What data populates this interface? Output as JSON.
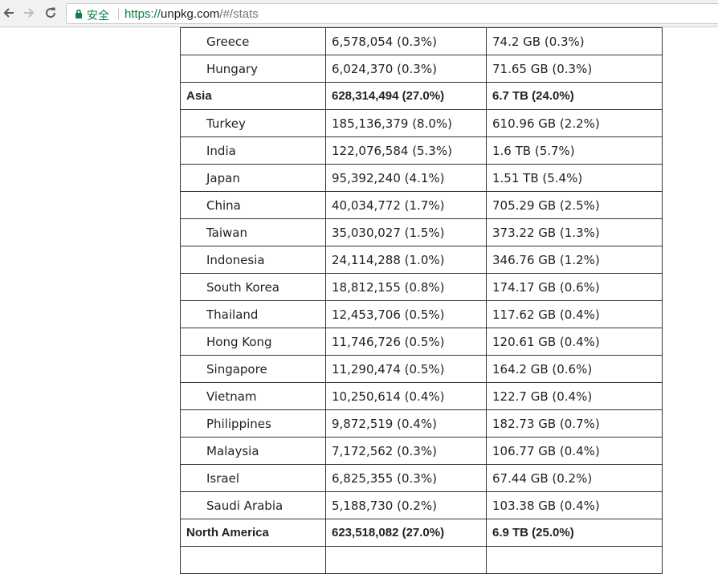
{
  "browser": {
    "security_label": "安全",
    "url_scheme": "https://",
    "url_host": "unpkg.com",
    "url_path": "/#/stats"
  },
  "table": {
    "rows": [
      {
        "kind": "country",
        "name": "Greece",
        "requests": "6,578,054 (0.3%)",
        "bandwidth": "74.2 GB (0.3%)"
      },
      {
        "kind": "country",
        "name": "Hungary",
        "requests": "6,024,370 (0.3%)",
        "bandwidth": "71.65 GB (0.3%)"
      },
      {
        "kind": "region",
        "name": "Asia",
        "requests": "628,314,494 (27.0%)",
        "bandwidth": "6.7 TB (24.0%)"
      },
      {
        "kind": "country",
        "name": "Turkey",
        "requests": "185,136,379 (8.0%)",
        "bandwidth": "610.96 GB (2.2%)"
      },
      {
        "kind": "country",
        "name": "India",
        "requests": "122,076,584 (5.3%)",
        "bandwidth": "1.6 TB (5.7%)"
      },
      {
        "kind": "country",
        "name": "Japan",
        "requests": "95,392,240 (4.1%)",
        "bandwidth": "1.51 TB (5.4%)"
      },
      {
        "kind": "country",
        "name": "China",
        "requests": "40,034,772 (1.7%)",
        "bandwidth": "705.29 GB (2.5%)"
      },
      {
        "kind": "country",
        "name": "Taiwan",
        "requests": "35,030,027 (1.5%)",
        "bandwidth": "373.22 GB (1.3%)"
      },
      {
        "kind": "country",
        "name": "Indonesia",
        "requests": "24,114,288 (1.0%)",
        "bandwidth": "346.76 GB (1.2%)"
      },
      {
        "kind": "country",
        "name": "South Korea",
        "requests": "18,812,155 (0.8%)",
        "bandwidth": "174.17 GB (0.6%)"
      },
      {
        "kind": "country",
        "name": "Thailand",
        "requests": "12,453,706 (0.5%)",
        "bandwidth": "117.62 GB (0.4%)"
      },
      {
        "kind": "country",
        "name": "Hong Kong",
        "requests": "11,746,726 (0.5%)",
        "bandwidth": "120.61 GB (0.4%)"
      },
      {
        "kind": "country",
        "name": "Singapore",
        "requests": "11,290,474 (0.5%)",
        "bandwidth": "164.2 GB (0.6%)"
      },
      {
        "kind": "country",
        "name": "Vietnam",
        "requests": "10,250,614 (0.4%)",
        "bandwidth": "122.7 GB (0.4%)"
      },
      {
        "kind": "country",
        "name": "Philippines",
        "requests": "9,872,519 (0.4%)",
        "bandwidth": "182.73 GB (0.7%)"
      },
      {
        "kind": "country",
        "name": "Malaysia",
        "requests": "7,172,562 (0.3%)",
        "bandwidth": "106.77 GB (0.4%)"
      },
      {
        "kind": "country",
        "name": "Israel",
        "requests": "6,825,355 (0.3%)",
        "bandwidth": "67.44 GB (0.2%)"
      },
      {
        "kind": "country",
        "name": "Saudi Arabia",
        "requests": "5,188,730 (0.2%)",
        "bandwidth": "103.38 GB (0.4%)"
      },
      {
        "kind": "region",
        "name": "North America",
        "requests": "623,518,082 (27.0%)",
        "bandwidth": "6.9 TB (25.0%)"
      },
      {
        "kind": "country",
        "name": "",
        "requests": "",
        "bandwidth": ""
      }
    ]
  }
}
